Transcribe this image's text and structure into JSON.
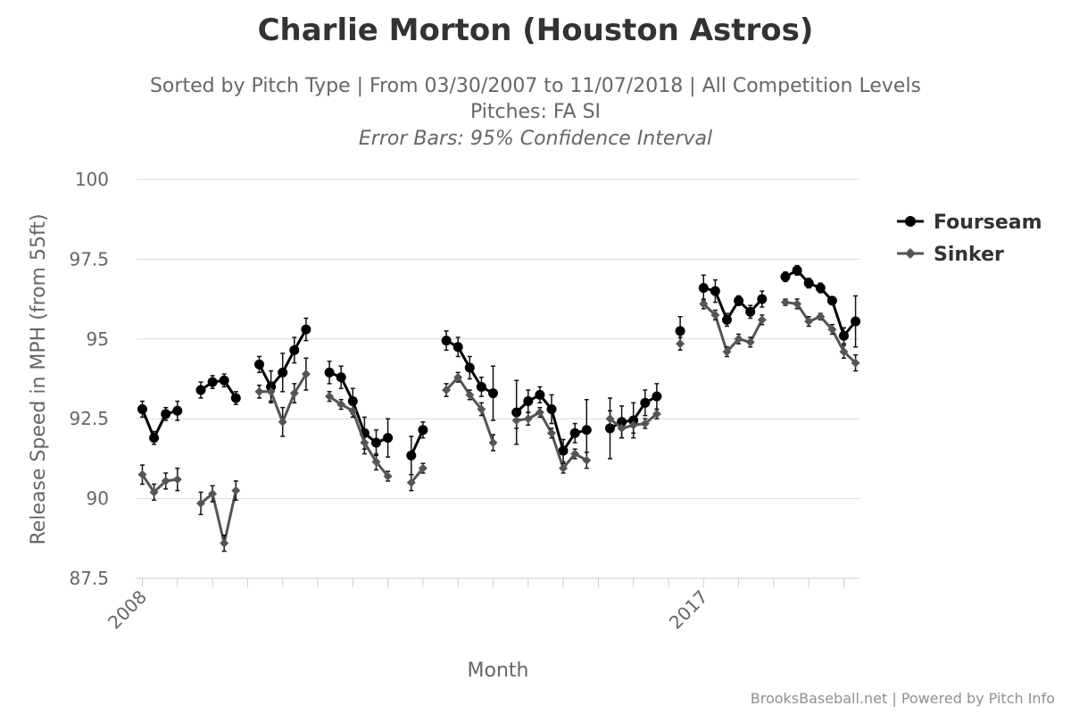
{
  "chart_data": {
    "type": "line",
    "title": "Charlie Morton (Houston Astros)",
    "subtitle_1": "Sorted by Pitch Type | From 03/30/2007 to 11/07/2018 | All Competition Levels",
    "subtitle_2": "Pitches: FA SI",
    "subtitle_3": "Error Bars: 95% Confidence Interval",
    "xlabel": "Month",
    "ylabel": "Release Speed in MPH (from 55ft)",
    "ylim": [
      87.5,
      100
    ],
    "yticks": [
      "87.5",
      "90",
      "92.5",
      "95",
      "97.5",
      "100"
    ],
    "x_tick_labels": [
      {
        "label": "2008",
        "x": 0
      },
      {
        "label": "2017",
        "x": 48
      }
    ],
    "x_range": [
      0,
      61.5
    ],
    "grid": true,
    "legend_placement": "top-right",
    "series": [
      {
        "name": "Fourseam",
        "color": "#000000",
        "marker": "circle",
        "segments": [
          [
            [
              0,
              92.8,
              0.25
            ],
            [
              1,
              91.9,
              0.2
            ],
            [
              2,
              92.65,
              0.2
            ],
            [
              3,
              92.75,
              0.3
            ]
          ],
          [
            [
              5,
              93.4,
              0.25
            ],
            [
              6,
              93.65,
              0.2
            ],
            [
              7,
              93.7,
              0.2
            ],
            [
              8,
              93.15,
              0.2
            ]
          ],
          [
            [
              10,
              94.2,
              0.25
            ],
            [
              11,
              93.5,
              0.5
            ],
            [
              12,
              93.95,
              0.6
            ],
            [
              13,
              94.65,
              0.4
            ],
            [
              14,
              95.3,
              0.35
            ]
          ],
          [
            [
              16,
              93.95,
              0.35
            ],
            [
              17,
              93.8,
              0.35
            ],
            [
              18,
              93.05,
              0.4
            ],
            [
              19,
              92.05,
              0.5
            ],
            [
              20,
              91.75,
              0.4
            ],
            [
              21,
              91.9,
              0.6
            ]
          ],
          [
            [
              23,
              91.35,
              0.6
            ],
            [
              24,
              92.15,
              0.25
            ]
          ],
          [
            [
              26,
              94.95,
              0.3
            ],
            [
              27,
              94.75,
              0.3
            ],
            [
              28,
              94.1,
              0.35
            ],
            [
              29,
              93.5,
              0.3
            ],
            [
              30,
              93.3,
              0.85
            ]
          ],
          [
            [
              32,
              92.7,
              1.0
            ],
            [
              33,
              93.05,
              0.35
            ],
            [
              34,
              93.25,
              0.25
            ],
            [
              35,
              92.8,
              0.45
            ],
            [
              36,
              91.5,
              0.35
            ],
            [
              37,
              92.05,
              0.3
            ],
            [
              38,
              92.15,
              0.95
            ]
          ],
          [
            [
              40,
              92.2,
              0.95
            ],
            [
              41,
              92.4,
              0.5
            ],
            [
              42,
              92.45,
              0.55
            ],
            [
              43,
              93.0,
              0.4
            ],
            [
              44,
              93.2,
              0.4
            ]
          ],
          [
            [
              46,
              95.25,
              0.45
            ]
          ],
          [
            [
              48,
              96.6,
              0.4
            ],
            [
              49,
              96.5,
              0.35
            ],
            [
              50,
              95.6,
              0.2
            ],
            [
              51,
              96.2,
              0.15
            ],
            [
              52,
              95.85,
              0.2
            ],
            [
              53,
              96.25,
              0.25
            ]
          ],
          [
            [
              55,
              96.95,
              0.15
            ],
            [
              56,
              97.15,
              0.15
            ],
            [
              57,
              96.75,
              0.15
            ],
            [
              58,
              96.6,
              0.15
            ],
            [
              59,
              96.2,
              0.1
            ],
            [
              60,
              95.1,
              0.25
            ],
            [
              61,
              95.55,
              0.8
            ]
          ]
        ]
      },
      {
        "name": "Sinker",
        "color": "#555555",
        "marker": "diamond",
        "segments": [
          [
            [
              0,
              90.75,
              0.3
            ],
            [
              1,
              90.2,
              0.25
            ],
            [
              2,
              90.55,
              0.25
            ],
            [
              3,
              90.6,
              0.35
            ]
          ],
          [
            [
              5,
              89.85,
              0.35
            ],
            [
              6,
              90.15,
              0.25
            ],
            [
              7,
              88.6,
              0.25
            ],
            [
              8,
              90.25,
              0.3
            ]
          ],
          [
            [
              10,
              93.35,
              0.2
            ],
            [
              11,
              93.35,
              0.3
            ],
            [
              12,
              92.4,
              0.45
            ],
            [
              13,
              93.3,
              0.3
            ],
            [
              14,
              93.9,
              0.5
            ]
          ],
          [
            [
              16,
              93.2,
              0.15
            ],
            [
              17,
              92.95,
              0.15
            ],
            [
              18,
              92.75,
              0.2
            ],
            [
              19,
              91.75,
              0.35
            ],
            [
              20,
              91.15,
              0.25
            ],
            [
              21,
              90.7,
              0.15
            ]
          ],
          [
            [
              23,
              90.5,
              0.25
            ],
            [
              24,
              90.95,
              0.15
            ]
          ],
          [
            [
              26,
              93.4,
              0.2
            ],
            [
              27,
              93.8,
              0.15
            ],
            [
              28,
              93.25,
              0.15
            ],
            [
              29,
              92.8,
              0.2
            ],
            [
              30,
              91.75,
              0.25
            ]
          ],
          [
            [
              32,
              92.45,
              0.25
            ],
            [
              33,
              92.5,
              0.2
            ],
            [
              34,
              92.7,
              0.15
            ],
            [
              35,
              92.05,
              0.15
            ],
            [
              36,
              90.95,
              0.15
            ],
            [
              37,
              91.4,
              0.15
            ],
            [
              38,
              91.2,
              0.25
            ]
          ],
          [
            [
              40,
              92.5,
              0.25
            ],
            [
              41,
              92.2,
              0.3
            ],
            [
              42,
              92.3,
              0.25
            ],
            [
              43,
              92.35,
              0.15
            ],
            [
              44,
              92.65,
              0.15
            ]
          ],
          [
            [
              46,
              94.85,
              0.2
            ]
          ],
          [
            [
              48,
              96.1,
              0.15
            ],
            [
              49,
              95.75,
              0.15
            ],
            [
              50,
              94.6,
              0.15
            ],
            [
              51,
              95.0,
              0.15
            ],
            [
              52,
              94.9,
              0.15
            ],
            [
              53,
              95.6,
              0.15
            ]
          ],
          [
            [
              55,
              96.15,
              0.1
            ],
            [
              56,
              96.1,
              0.15
            ],
            [
              57,
              95.55,
              0.15
            ],
            [
              58,
              95.7,
              0.1
            ],
            [
              59,
              95.3,
              0.15
            ],
            [
              60,
              94.6,
              0.2
            ],
            [
              61,
              94.25,
              0.25
            ]
          ]
        ]
      }
    ]
  },
  "credit": "BrooksBaseball.net | Powered by Pitch Info"
}
